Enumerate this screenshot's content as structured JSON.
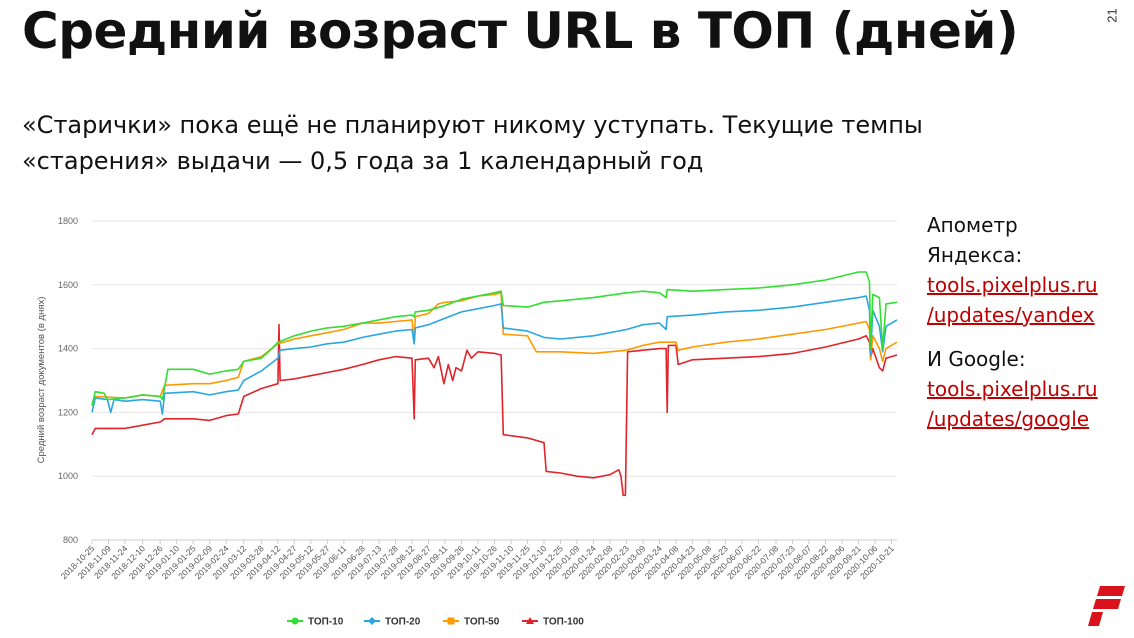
{
  "slide": {
    "title": "Средний возраст URL в ТОП (дней)",
    "page_number": "21",
    "subtitle_line1": "«Старички» пока ещё не планируют никому уступать. Текущие темпы",
    "subtitle_line2": "«старения» выдачи — 0,5 года за 1 календарный год"
  },
  "sidebar": {
    "yandex_label_1": "Апометр",
    "yandex_label_2": "Яндекса:",
    "yandex_link_1": "tools.pixelplus.ru",
    "yandex_link_2": "/updates/yandex",
    "google_label": "И Google:",
    "google_link_1": "tools.pixelplus.ru",
    "google_link_2": "/updates/google"
  },
  "colors": {
    "top10": "#33dd33",
    "top20": "#2aa7e0",
    "top50": "#ff9900",
    "top100": "#e0242b",
    "link": "#c00000",
    "logo": "#d9121b"
  },
  "chart_data": {
    "type": "line",
    "title": "",
    "xlabel": "",
    "ylabel": "Средний возраст документов (в днях)",
    "ylim": [
      800,
      1800
    ],
    "yticks": [
      800,
      1000,
      1200,
      1400,
      1600,
      1800
    ],
    "grid": true,
    "legend_position": "bottom",
    "x_tick_labels": [
      "2018-10-25",
      "2018-11-09",
      "2018-11-24",
      "2018-12-10",
      "2018-12-26",
      "2019-01-10",
      "2019-01-25",
      "2019-02-09",
      "2019-02-24",
      "2019-03-12",
      "2019-03-28",
      "2019-04-12",
      "2019-04-27",
      "2019-05-12",
      "2019-05-27",
      "2019-06-11",
      "2019-06-28",
      "2019-07-13",
      "2019-07-28",
      "2019-08-12",
      "2019-08-27",
      "2019-09-11",
      "2019-09-26",
      "2019-10-11",
      "2019-10-26",
      "2019-11-10",
      "2019-11-25",
      "2019-12-10",
      "2019-12-25",
      "2020-01-09",
      "2020-01-24",
      "2020-02-08",
      "2020-02-23",
      "2020-03-09",
      "2020-03-24",
      "2020-04-08",
      "2020-04-23",
      "2020-05-08",
      "2020-05-23",
      "2020-06-07",
      "2020-06-22",
      "2020-07-08",
      "2020-07-23",
      "2020-08-07",
      "2020-08-22",
      "2020-09-06",
      "2020-09-21",
      "2020-10-06",
      "2020-10-21"
    ],
    "x_range": [
      "2018-10-25",
      "2020-10-26"
    ],
    "series": [
      {
        "name": "ТОП-10",
        "points": [
          [
            "2018-10-25",
            1220
          ],
          [
            "2018-10-28",
            1265
          ],
          [
            "2018-11-05",
            1260
          ],
          [
            "2018-11-08",
            1240
          ],
          [
            "2018-11-24",
            1245
          ],
          [
            "2018-12-10",
            1255
          ],
          [
            "2018-12-26",
            1250
          ],
          [
            "2018-12-28",
            1240
          ],
          [
            "2019-01-02",
            1335
          ],
          [
            "2019-01-25",
            1335
          ],
          [
            "2019-02-09",
            1320
          ],
          [
            "2019-02-24",
            1330
          ],
          [
            "2019-03-07",
            1335
          ],
          [
            "2019-03-12",
            1360
          ],
          [
            "2019-03-28",
            1370
          ],
          [
            "2019-04-05",
            1395
          ],
          [
            "2019-04-12",
            1420
          ],
          [
            "2019-04-27",
            1440
          ],
          [
            "2019-05-12",
            1455
          ],
          [
            "2019-05-27",
            1465
          ],
          [
            "2019-06-11",
            1470
          ],
          [
            "2019-06-28",
            1480
          ],
          [
            "2019-07-13",
            1490
          ],
          [
            "2019-07-28",
            1500
          ],
          [
            "2019-08-12",
            1505
          ],
          [
            "2019-08-14",
            1500
          ],
          [
            "2019-08-15",
            1515
          ],
          [
            "2019-08-27",
            1520
          ],
          [
            "2019-09-11",
            1535
          ],
          [
            "2019-09-26",
            1555
          ],
          [
            "2019-10-11",
            1565
          ],
          [
            "2019-10-26",
            1575
          ],
          [
            "2019-11-01",
            1580
          ],
          [
            "2019-11-03",
            1535
          ],
          [
            "2019-11-25",
            1530
          ],
          [
            "2019-12-10",
            1545
          ],
          [
            "2019-12-25",
            1550
          ],
          [
            "2020-01-24",
            1560
          ],
          [
            "2020-02-23",
            1575
          ],
          [
            "2020-03-09",
            1580
          ],
          [
            "2020-03-24",
            1575
          ],
          [
            "2020-03-30",
            1560
          ],
          [
            "2020-03-31",
            1585
          ],
          [
            "2020-04-23",
            1580
          ],
          [
            "2020-05-23",
            1585
          ],
          [
            "2020-06-22",
            1590
          ],
          [
            "2020-07-23",
            1600
          ],
          [
            "2020-08-22",
            1615
          ],
          [
            "2020-09-21",
            1640
          ],
          [
            "2020-09-28",
            1640
          ],
          [
            "2020-10-01",
            1610
          ],
          [
            "2020-10-02",
            1400
          ],
          [
            "2020-10-04",
            1570
          ],
          [
            "2020-10-10",
            1560
          ],
          [
            "2020-10-13",
            1400
          ],
          [
            "2020-10-16",
            1540
          ],
          [
            "2020-10-26",
            1545
          ]
        ]
      },
      {
        "name": "ТОП-20",
        "points": [
          [
            "2018-10-25",
            1200
          ],
          [
            "2018-10-28",
            1245
          ],
          [
            "2018-11-08",
            1240
          ],
          [
            "2018-11-11",
            1200
          ],
          [
            "2018-11-14",
            1240
          ],
          [
            "2018-11-24",
            1235
          ],
          [
            "2018-12-10",
            1240
          ],
          [
            "2018-12-26",
            1235
          ],
          [
            "2018-12-28",
            1195
          ],
          [
            "2018-12-30",
            1260
          ],
          [
            "2019-01-25",
            1265
          ],
          [
            "2019-02-09",
            1255
          ],
          [
            "2019-02-24",
            1265
          ],
          [
            "2019-03-07",
            1270
          ],
          [
            "2019-03-12",
            1300
          ],
          [
            "2019-03-28",
            1330
          ],
          [
            "2019-04-12",
            1370
          ],
          [
            "2019-04-14",
            1395
          ],
          [
            "2019-04-27",
            1400
          ],
          [
            "2019-05-12",
            1405
          ],
          [
            "2019-05-27",
            1415
          ],
          [
            "2019-06-11",
            1420
          ],
          [
            "2019-06-28",
            1435
          ],
          [
            "2019-07-13",
            1445
          ],
          [
            "2019-07-28",
            1455
          ],
          [
            "2019-08-12",
            1460
          ],
          [
            "2019-08-14",
            1415
          ],
          [
            "2019-08-15",
            1465
          ],
          [
            "2019-08-27",
            1475
          ],
          [
            "2019-09-11",
            1495
          ],
          [
            "2019-09-26",
            1515
          ],
          [
            "2019-10-11",
            1525
          ],
          [
            "2019-10-26",
            1535
          ],
          [
            "2019-11-01",
            1540
          ],
          [
            "2019-11-03",
            1465
          ],
          [
            "2019-11-25",
            1455
          ],
          [
            "2019-12-10",
            1435
          ],
          [
            "2019-12-25",
            1430
          ],
          [
            "2020-01-24",
            1440
          ],
          [
            "2020-02-23",
            1460
          ],
          [
            "2020-03-09",
            1475
          ],
          [
            "2020-03-24",
            1480
          ],
          [
            "2020-03-30",
            1460
          ],
          [
            "2020-03-31",
            1500
          ],
          [
            "2020-04-23",
            1505
          ],
          [
            "2020-05-23",
            1515
          ],
          [
            "2020-06-22",
            1520
          ],
          [
            "2020-07-23",
            1530
          ],
          [
            "2020-08-22",
            1545
          ],
          [
            "2020-09-21",
            1560
          ],
          [
            "2020-09-28",
            1565
          ],
          [
            "2020-10-01",
            1520
          ],
          [
            "2020-10-02",
            1380
          ],
          [
            "2020-10-04",
            1520
          ],
          [
            "2020-10-10",
            1470
          ],
          [
            "2020-10-13",
            1390
          ],
          [
            "2020-10-16",
            1470
          ],
          [
            "2020-10-26",
            1490
          ]
        ]
      },
      {
        "name": "ТОП-50",
        "points": [
          [
            "2018-10-25",
            1230
          ],
          [
            "2018-10-28",
            1250
          ],
          [
            "2018-11-24",
            1245
          ],
          [
            "2018-12-10",
            1255
          ],
          [
            "2018-12-26",
            1250
          ],
          [
            "2018-12-30",
            1285
          ],
          [
            "2019-01-25",
            1290
          ],
          [
            "2019-02-09",
            1290
          ],
          [
            "2019-02-24",
            1300
          ],
          [
            "2019-03-07",
            1310
          ],
          [
            "2019-03-12",
            1360
          ],
          [
            "2019-03-28",
            1375
          ],
          [
            "2019-04-12",
            1415
          ],
          [
            "2019-04-27",
            1430
          ],
          [
            "2019-05-12",
            1440
          ],
          [
            "2019-05-27",
            1450
          ],
          [
            "2019-06-11",
            1460
          ],
          [
            "2019-06-28",
            1480
          ],
          [
            "2019-07-13",
            1480
          ],
          [
            "2019-07-28",
            1485
          ],
          [
            "2019-08-12",
            1490
          ],
          [
            "2019-08-14",
            1420
          ],
          [
            "2019-08-15",
            1500
          ],
          [
            "2019-08-27",
            1510
          ],
          [
            "2019-09-05",
            1540
          ],
          [
            "2019-09-11",
            1545
          ],
          [
            "2019-09-26",
            1550
          ],
          [
            "2019-10-11",
            1565
          ],
          [
            "2019-10-26",
            1570
          ],
          [
            "2019-11-01",
            1575
          ],
          [
            "2019-11-03",
            1445
          ],
          [
            "2019-11-25",
            1440
          ],
          [
            "2019-12-03",
            1390
          ],
          [
            "2019-12-25",
            1390
          ],
          [
            "2020-01-24",
            1385
          ],
          [
            "2020-02-23",
            1395
          ],
          [
            "2020-03-09",
            1410
          ],
          [
            "2020-03-24",
            1420
          ],
          [
            "2020-04-08",
            1420
          ],
          [
            "2020-04-10",
            1395
          ],
          [
            "2020-04-23",
            1405
          ],
          [
            "2020-05-23",
            1420
          ],
          [
            "2020-06-22",
            1430
          ],
          [
            "2020-07-23",
            1445
          ],
          [
            "2020-08-22",
            1460
          ],
          [
            "2020-09-21",
            1480
          ],
          [
            "2020-09-28",
            1485
          ],
          [
            "2020-10-01",
            1460
          ],
          [
            "2020-10-02",
            1365
          ],
          [
            "2020-10-04",
            1440
          ],
          [
            "2020-10-10",
            1400
          ],
          [
            "2020-10-13",
            1360
          ],
          [
            "2020-10-16",
            1400
          ],
          [
            "2020-10-26",
            1420
          ]
        ]
      },
      {
        "name": "ТОП-100",
        "points": [
          [
            "2018-10-25",
            1130
          ],
          [
            "2018-10-28",
            1150
          ],
          [
            "2018-11-24",
            1150
          ],
          [
            "2018-12-10",
            1160
          ],
          [
            "2018-12-26",
            1170
          ],
          [
            "2018-12-30",
            1180
          ],
          [
            "2019-01-25",
            1180
          ],
          [
            "2019-02-09",
            1175
          ],
          [
            "2019-02-24",
            1190
          ],
          [
            "2019-03-07",
            1195
          ],
          [
            "2019-03-12",
            1250
          ],
          [
            "2019-03-28",
            1275
          ],
          [
            "2019-04-12",
            1290
          ],
          [
            "2019-04-13",
            1475
          ],
          [
            "2019-04-14",
            1300
          ],
          [
            "2019-04-27",
            1305
          ],
          [
            "2019-05-12",
            1315
          ],
          [
            "2019-05-27",
            1325
          ],
          [
            "2019-06-11",
            1335
          ],
          [
            "2019-06-28",
            1350
          ],
          [
            "2019-07-13",
            1365
          ],
          [
            "2019-07-28",
            1375
          ],
          [
            "2019-08-12",
            1370
          ],
          [
            "2019-08-14",
            1180
          ],
          [
            "2019-08-15",
            1365
          ],
          [
            "2019-08-27",
            1370
          ],
          [
            "2019-09-01",
            1340
          ],
          [
            "2019-09-05",
            1375
          ],
          [
            "2019-09-10",
            1290
          ],
          [
            "2019-09-14",
            1350
          ],
          [
            "2019-09-18",
            1300
          ],
          [
            "2019-09-21",
            1340
          ],
          [
            "2019-09-26",
            1330
          ],
          [
            "2019-10-01",
            1395
          ],
          [
            "2019-10-05",
            1370
          ],
          [
            "2019-10-11",
            1390
          ],
          [
            "2019-10-26",
            1385
          ],
          [
            "2019-11-01",
            1380
          ],
          [
            "2019-11-03",
            1130
          ],
          [
            "2019-11-25",
            1120
          ],
          [
            "2019-12-10",
            1105
          ],
          [
            "2019-12-12",
            1015
          ],
          [
            "2019-12-25",
            1010
          ],
          [
            "2020-01-09",
            1000
          ],
          [
            "2020-01-24",
            995
          ],
          [
            "2020-02-08",
            1005
          ],
          [
            "2020-02-16",
            1020
          ],
          [
            "2020-02-18",
            1000
          ],
          [
            "2020-02-20",
            940
          ],
          [
            "2020-02-22",
            940
          ],
          [
            "2020-02-24",
            1390
          ],
          [
            "2020-03-09",
            1395
          ],
          [
            "2020-03-24",
            1400
          ],
          [
            "2020-03-30",
            1400
          ],
          [
            "2020-03-31",
            1200
          ],
          [
            "2020-04-01",
            1410
          ],
          [
            "2020-04-08",
            1410
          ],
          [
            "2020-04-10",
            1350
          ],
          [
            "2020-04-23",
            1365
          ],
          [
            "2020-05-23",
            1370
          ],
          [
            "2020-06-22",
            1375
          ],
          [
            "2020-07-23",
            1385
          ],
          [
            "2020-08-22",
            1405
          ],
          [
            "2020-09-21",
            1430
          ],
          [
            "2020-09-28",
            1440
          ],
          [
            "2020-10-01",
            1420
          ],
          [
            "2020-10-02",
            1370
          ],
          [
            "2020-10-04",
            1400
          ],
          [
            "2020-10-10",
            1340
          ],
          [
            "2020-10-13",
            1330
          ],
          [
            "2020-10-16",
            1370
          ],
          [
            "2020-10-26",
            1380
          ]
        ]
      }
    ]
  }
}
